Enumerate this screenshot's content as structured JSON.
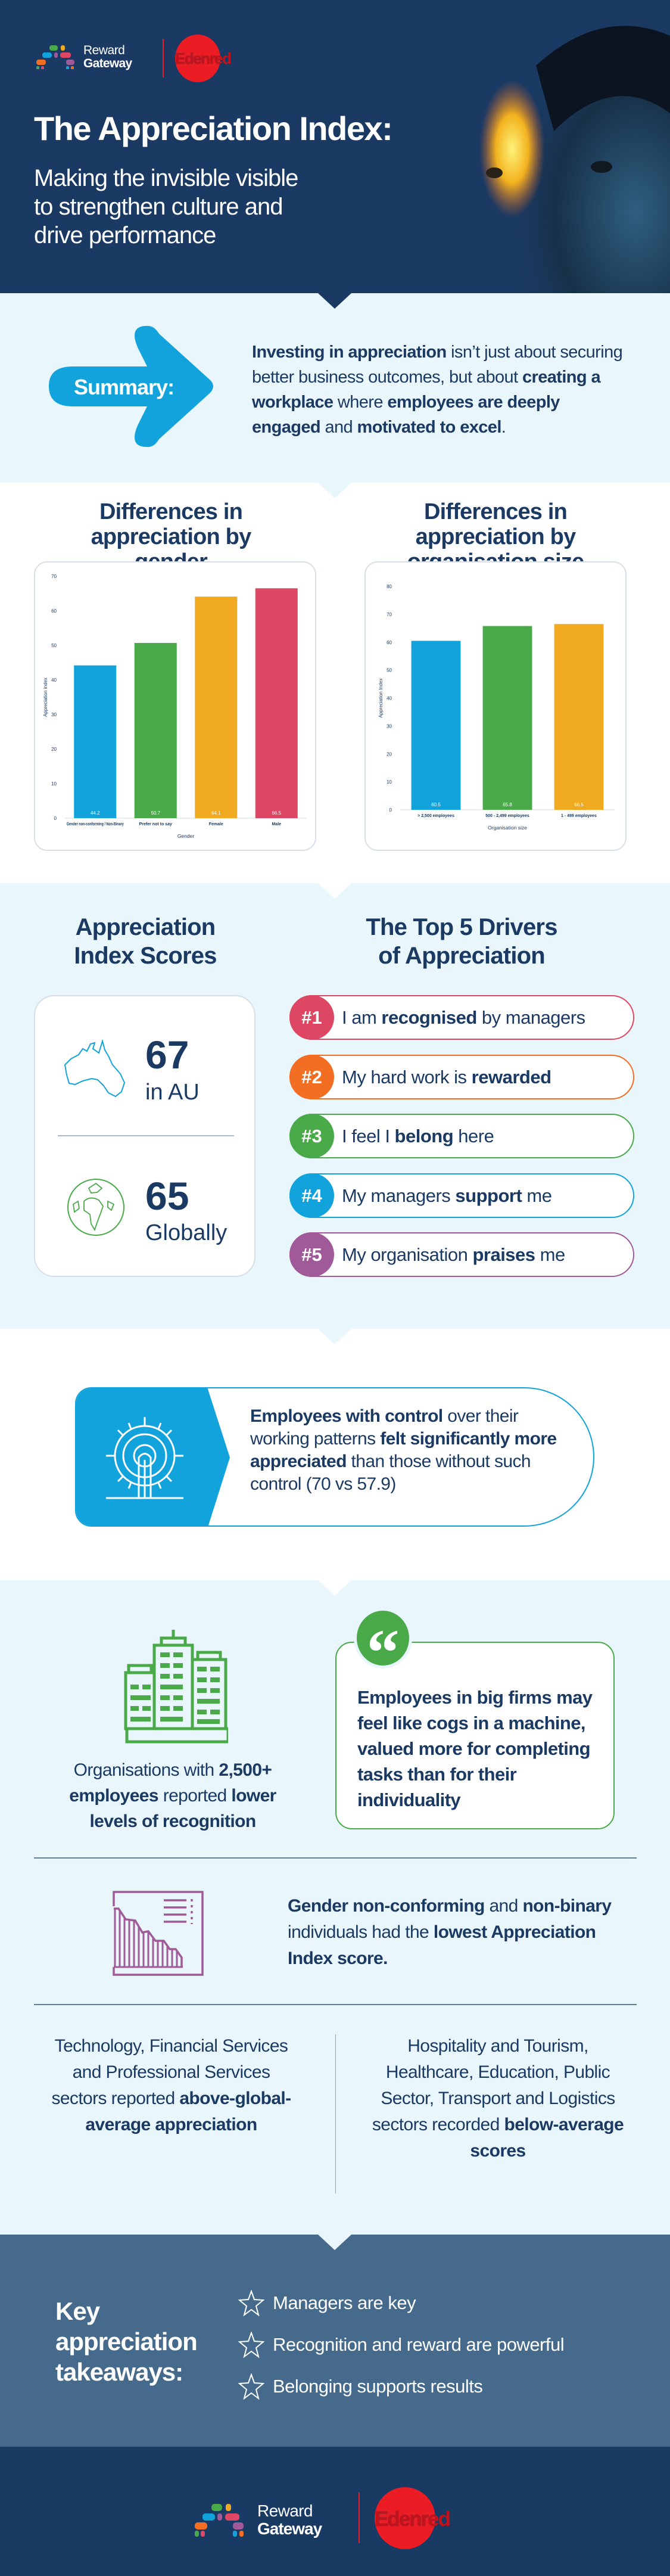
{
  "brand": {
    "reward_gateway_line1": "Reward",
    "reward_gateway_line2": "Gateway",
    "edenred": "Edenred"
  },
  "colors": {
    "navy": "#1b3a63",
    "light_bg": "#e9f6fc",
    "blue": "#12a3dc",
    "green": "#4aaa4a",
    "yellow": "#f0aa20",
    "red": "#de4763",
    "orange": "#f26e22",
    "purple": "#a05a9a",
    "steel": "#456a8c",
    "edenred_red": "#ec1c24"
  },
  "header": {
    "title": "The Appreciation Index:",
    "subtitle_lines": [
      "Making the invisible visible",
      "to strengthen culture and",
      "drive performance"
    ]
  },
  "summary": {
    "label": "Summary:",
    "text": [
      {
        "t": "Investing in appreciation",
        "b": true
      },
      {
        "t": " isn’t just about securing better business outcomes, but about ",
        "b": false
      },
      {
        "t": "creating a workplace",
        "b": true
      },
      {
        "t": " where ",
        "b": false
      },
      {
        "t": "employees are deeply engaged",
        "b": true
      },
      {
        "t": " and ",
        "b": false
      },
      {
        "t": "motivated to excel",
        "b": true
      },
      {
        "t": ".",
        "b": false
      }
    ]
  },
  "charts_section": {
    "gender_title": "Differences in appreciation by gender",
    "size_title": "Differences in appreciation by organisation size"
  },
  "chart_data": [
    {
      "type": "bar",
      "title": "Differences in appreciation by gender",
      "xlabel": "Gender",
      "ylabel": "Appreciation index",
      "categories": [
        "Gender non-conforming / Non-Binary",
        "Prefer not to say",
        "Female",
        "Male"
      ],
      "values": [
        44.2,
        50.7,
        64.1,
        66.5
      ],
      "data_labels": [
        "44.2",
        "50.7",
        "64.1",
        "66.5"
      ],
      "bar_colors": [
        "#12a3dc",
        "#4aaa4a",
        "#f0aa20",
        "#de4763"
      ],
      "ylim": [
        0,
        70
      ],
      "yticks": [
        0,
        10,
        20,
        30,
        40,
        50,
        60,
        70
      ],
      "grid": false
    },
    {
      "type": "bar",
      "title": "Differences in appreciation by organisation size",
      "xlabel": "Organisation size",
      "ylabel": "Appreciation Index",
      "categories": [
        "> 2,500 employees",
        "500 - 2,499 employees",
        "1 - 499 employees"
      ],
      "values": [
        60.5,
        65.8,
        66.5
      ],
      "data_labels": [
        "60.5",
        "65.8",
        "66.5"
      ],
      "bar_colors": [
        "#12a3dc",
        "#4aaa4a",
        "#f0aa20"
      ],
      "ylim": [
        0,
        80
      ],
      "yticks": [
        0,
        10,
        20,
        30,
        40,
        50,
        60,
        70,
        80
      ],
      "grid": false
    }
  ],
  "scores": {
    "title_lines": [
      "Appreciation",
      "Index Scores"
    ],
    "au_value": "67",
    "au_label": "in AU",
    "global_value": "65",
    "global_label": "Globally"
  },
  "drivers": {
    "title_lines": [
      "The Top 5 Drivers",
      "of Appreciation"
    ],
    "items": [
      {
        "rank": "#1",
        "color": "#de4763",
        "text": [
          {
            "t": "I am ",
            "b": false
          },
          {
            "t": "recognised",
            "b": true
          },
          {
            "t": " by managers",
            "b": false
          }
        ]
      },
      {
        "rank": "#2",
        "color": "#f26e22",
        "text": [
          {
            "t": "My hard work is ",
            "b": false
          },
          {
            "t": "rewarded",
            "b": true
          }
        ]
      },
      {
        "rank": "#3",
        "color": "#4aaa4a",
        "text": [
          {
            "t": "I feel I ",
            "b": false
          },
          {
            "t": "belong",
            "b": true
          },
          {
            "t": " here",
            "b": false
          }
        ]
      },
      {
        "rank": "#4",
        "color": "#12a3dc",
        "text": [
          {
            "t": "My managers ",
            "b": false
          },
          {
            "t": "support",
            "b": true
          },
          {
            "t": " me",
            "b": false
          }
        ]
      },
      {
        "rank": "#5",
        "color": "#a05a9a",
        "text": [
          {
            "t": "My organisation ",
            "b": false
          },
          {
            "t": "praises",
            "b": true
          },
          {
            "t": " me",
            "b": false
          }
        ]
      }
    ]
  },
  "control": {
    "text": [
      {
        "t": "Employees with control",
        "b": true
      },
      {
        "t": " over their working patterns ",
        "b": false
      },
      {
        "t": "felt significantly more appreciated",
        "b": true
      },
      {
        "t": " than those without such control (70 vs 57.9)",
        "b": false
      }
    ]
  },
  "big_firms": {
    "org_text": [
      {
        "t": "Organisations with ",
        "b": false
      },
      {
        "t": "2,500+ employees",
        "b": true
      },
      {
        "t": " reported ",
        "b": false
      },
      {
        "t": "lower levels of recognition",
        "b": true
      }
    ],
    "quote": "Employees in big firms may feel like cogs in a machine, valued more for completing tasks than for their individuality"
  },
  "gender_note": {
    "text": [
      {
        "t": "Gender non-conforming",
        "b": true
      },
      {
        "t": " and ",
        "b": false
      },
      {
        "t": "non-binary",
        "b": true
      },
      {
        "t": " individuals had the ",
        "b": false
      },
      {
        "t": "lowest Appreciation Index score.",
        "b": true
      }
    ]
  },
  "sectors": {
    "above": [
      {
        "t": "Technology, Financial Services and Professional Services sectors reported ",
        "b": false
      },
      {
        "t": "above-global-average appreciation",
        "b": true
      }
    ],
    "below": [
      {
        "t": "Hospitality and Tourism, Healthcare, Education, Public Sector, Transport and Logistics sectors recorded ",
        "b": false
      },
      {
        "t": "below-average scores",
        "b": true
      }
    ]
  },
  "takeaways": {
    "title_lines": [
      "Key",
      "appreciation",
      "takeaways:"
    ],
    "items": [
      "Managers are key",
      "Recognition and reward are powerful",
      "Belonging supports results"
    ],
    "icon": "star-outline-icon"
  }
}
